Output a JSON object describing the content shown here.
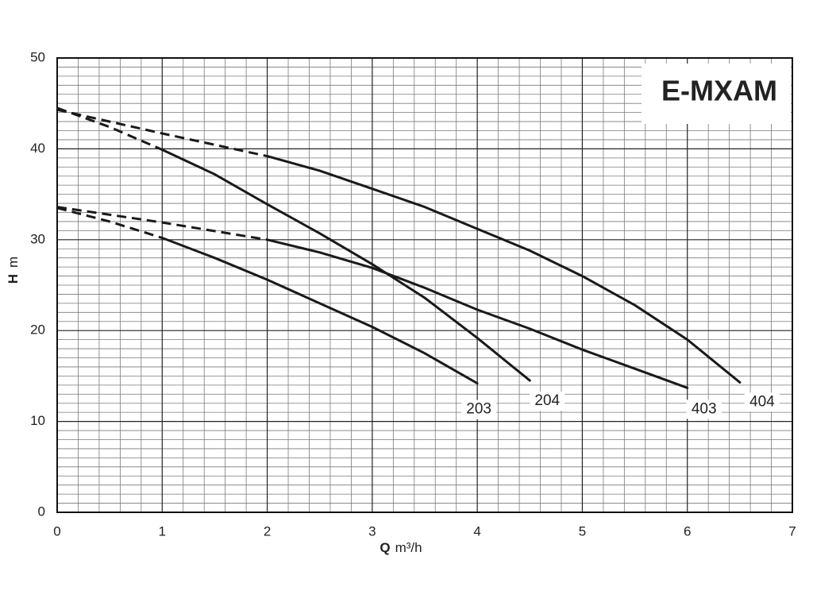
{
  "chart_data": {
    "type": "line",
    "title": "E-MXAM",
    "xlabel": {
      "symbol": "Q",
      "unit": "m³/h"
    },
    "ylabel": {
      "symbol": "H",
      "unit": "m"
    },
    "xlim": [
      0,
      7
    ],
    "ylim": [
      0,
      50
    ],
    "xticks": [
      0,
      1,
      2,
      3,
      4,
      5,
      6,
      7
    ],
    "yticks": [
      0,
      10,
      20,
      30,
      40,
      50
    ],
    "minor_xticks": [
      0.2,
      0.4,
      0.6,
      0.8,
      1.2,
      1.4,
      1.6,
      1.8,
      2.2,
      2.4,
      2.6,
      2.8,
      3.2,
      3.4,
      3.6,
      3.8,
      4.2,
      4.4,
      4.6,
      4.8,
      5.2,
      5.4,
      5.6,
      5.8,
      6.2,
      6.4,
      6.6,
      6.8
    ],
    "minor_yticks": [
      1,
      2,
      3,
      4,
      5,
      6,
      7,
      8,
      9,
      11,
      12,
      13,
      14,
      15,
      16,
      17,
      18,
      19,
      21,
      22,
      23,
      24,
      25,
      26,
      27,
      28,
      29,
      31,
      32,
      33,
      34,
      35,
      36,
      37,
      38,
      39,
      41,
      42,
      43,
      44,
      45,
      46,
      47,
      48,
      49
    ],
    "grid": true,
    "series": [
      {
        "name": "203",
        "color": "#1a1a1a",
        "dashed_until": 1,
        "x": [
          0,
          0.5,
          1,
          1.5,
          2,
          2.5,
          3,
          3.5,
          4
        ],
        "values": [
          33.5,
          32.0,
          30.2,
          28.0,
          25.6,
          23.0,
          20.4,
          17.5,
          14.2
        ]
      },
      {
        "name": "204",
        "color": "#1a1a1a",
        "dashed_until": 1,
        "x": [
          0,
          0.5,
          1,
          1.5,
          2,
          2.5,
          3,
          3.5,
          4,
          4.5
        ],
        "values": [
          44.5,
          42.4,
          39.9,
          37.2,
          33.9,
          30.7,
          27.3,
          23.6,
          19.2,
          14.5
        ]
      },
      {
        "name": "403",
        "color": "#1a1a1a",
        "dashed_until": 2,
        "x": [
          0,
          1,
          2,
          2.5,
          3,
          3.5,
          4,
          4.5,
          5,
          5.5,
          6
        ],
        "values": [
          33.6,
          31.9,
          30.0,
          28.6,
          26.9,
          24.7,
          22.3,
          20.2,
          17.9,
          15.8,
          13.7
        ]
      },
      {
        "name": "404",
        "color": "#1a1a1a",
        "dashed_until": 2,
        "x": [
          0,
          1,
          2,
          2.5,
          3,
          3.5,
          4,
          4.5,
          5,
          5.5,
          6,
          6.5
        ],
        "values": [
          44.3,
          41.7,
          39.2,
          37.6,
          35.6,
          33.6,
          31.2,
          28.8,
          26.0,
          22.8,
          19.0,
          14.3
        ]
      }
    ]
  }
}
